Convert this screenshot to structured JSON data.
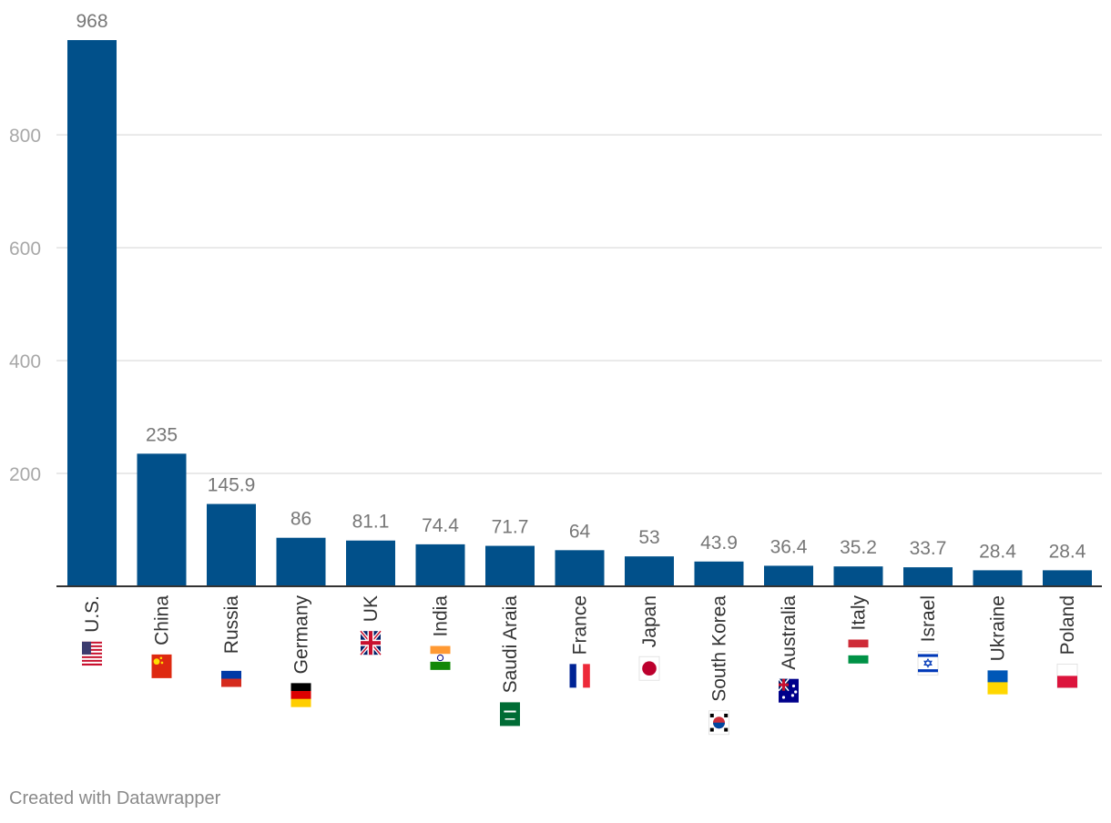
{
  "chart_data": {
    "type": "bar",
    "orientation": "vertical",
    "categories": [
      "U.S.",
      "China",
      "Russia",
      "Germany",
      "UK",
      "India",
      "Saudi Araia",
      "France",
      "Japan",
      "South Korea",
      "Australia",
      "Italy",
      "Israel",
      "Ukraine",
      "Poland"
    ],
    "values": [
      968,
      235,
      145.9,
      86,
      81.1,
      74.4,
      71.7,
      64,
      53,
      43.9,
      36.4,
      35.2,
      33.7,
      28.4,
      28.4
    ],
    "value_labels": [
      "968",
      "235",
      "145.9",
      "86",
      "81.1",
      "74.4",
      "71.7",
      "64",
      "53",
      "43.9",
      "36.4",
      "35.2",
      "33.7",
      "28.4",
      "28.4"
    ],
    "category_flags": [
      "us-flag-icon",
      "china-flag-icon",
      "russia-flag-icon",
      "germany-flag-icon",
      "uk-flag-icon",
      "india-flag-icon",
      "saudi-arabia-flag-icon",
      "france-flag-icon",
      "japan-flag-icon",
      "south-korea-flag-icon",
      "australia-flag-icon",
      "italy-flag-icon",
      "israel-flag-icon",
      "ukraine-flag-icon",
      "poland-flag-icon"
    ],
    "yticks": [
      200,
      400,
      600,
      800
    ],
    "ylim": [
      0,
      1000
    ],
    "grid": true,
    "bar_color": "#01508a",
    "title": "",
    "xlabel": "",
    "ylabel": ""
  },
  "footer": {
    "credit": "Created with Datawrapper"
  }
}
